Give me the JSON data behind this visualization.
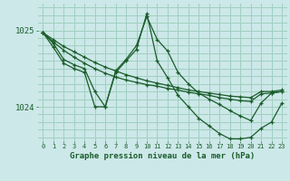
{
  "background_color": "#cce8e8",
  "grid_color": "#a0cfc0",
  "line_color": "#1a5c2a",
  "title": "Graphe pression niveau de la mer (hPa)",
  "xlim": [
    -0.5,
    23.5
  ],
  "ylim": [
    1023.55,
    1025.35
  ],
  "yticks": [
    1024,
    1025
  ],
  "xticks": [
    0,
    1,
    2,
    3,
    4,
    5,
    6,
    7,
    8,
    9,
    10,
    11,
    12,
    13,
    14,
    15,
    16,
    17,
    18,
    19,
    20,
    21,
    22,
    23
  ],
  "series": [
    {
      "x": [
        0,
        1,
        2,
        3,
        4,
        5,
        6,
        7,
        8,
        9,
        10,
        11,
        12,
        13,
        14,
        15,
        16,
        17,
        18,
        19,
        20,
        21,
        22,
        23
      ],
      "y": [
        1024.97,
        1024.88,
        1024.79,
        1024.72,
        1024.65,
        1024.58,
        1024.52,
        1024.47,
        1024.42,
        1024.38,
        1024.34,
        1024.31,
        1024.28,
        1024.25,
        1024.22,
        1024.2,
        1024.18,
        1024.16,
        1024.14,
        1024.13,
        1024.12,
        1024.2,
        1024.2,
        1024.22
      ]
    },
    {
      "x": [
        0,
        1,
        2,
        3,
        4,
        5,
        6,
        7,
        8,
        9,
        10,
        11,
        12,
        13,
        14,
        15,
        16,
        17,
        18,
        19,
        20,
        21,
        22,
        23
      ],
      "y": [
        1024.97,
        1024.85,
        1024.74,
        1024.65,
        1024.57,
        1024.5,
        1024.44,
        1024.39,
        1024.35,
        1024.32,
        1024.29,
        1024.27,
        1024.24,
        1024.22,
        1024.19,
        1024.17,
        1024.15,
        1024.12,
        1024.1,
        1024.08,
        1024.07,
        1024.17,
        1024.18,
        1024.2
      ]
    },
    {
      "x": [
        0,
        1,
        2,
        3,
        4,
        5,
        6,
        7,
        8,
        9,
        10,
        11,
        12,
        13,
        14,
        15,
        16,
        17,
        18,
        19,
        20,
        21,
        22,
        23
      ],
      "y": [
        1024.97,
        1024.83,
        1024.62,
        1024.55,
        1024.5,
        1024.2,
        1024.0,
        1024.47,
        1024.62,
        1024.8,
        1025.18,
        1024.88,
        1024.73,
        1024.45,
        1024.3,
        1024.18,
        1024.1,
        1024.03,
        1023.95,
        1023.88,
        1023.82,
        1024.05,
        1024.18,
        1024.2
      ]
    },
    {
      "x": [
        0,
        1,
        2,
        3,
        4,
        5,
        6,
        7,
        8,
        9,
        10,
        11,
        12,
        13,
        14,
        15,
        16,
        17,
        18,
        19,
        20,
        21,
        22,
        23
      ],
      "y": [
        1024.97,
        1024.78,
        1024.57,
        1024.5,
        1024.45,
        1024.0,
        1024.0,
        1024.45,
        1024.6,
        1024.75,
        1025.22,
        1024.6,
        1024.38,
        1024.15,
        1024.0,
        1023.85,
        1023.75,
        1023.65,
        1023.58,
        1023.58,
        1023.6,
        1023.72,
        1023.8,
        1024.05
      ]
    }
  ]
}
